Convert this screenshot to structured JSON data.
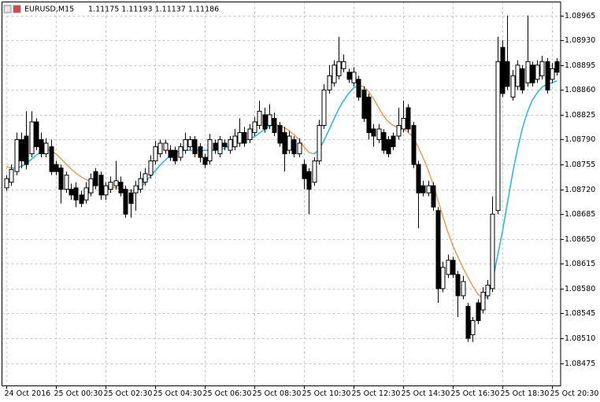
{
  "chart_data": {
    "type": "candlestick",
    "title": "EURUSD,M15",
    "quote": "1.11175 1.11193 1.11137 1.11186",
    "categories": [
      "24 Oct 2016",
      null,
      null,
      null,
      null,
      null,
      null,
      null,
      null,
      null,
      "25 Oct 00:30",
      null,
      null,
      null,
      null,
      null,
      null,
      null,
      null,
      null,
      "25 Oct 02:30",
      null,
      null,
      null,
      null,
      null,
      null,
      null,
      null,
      null,
      "25 Oct 04:30",
      null,
      null,
      null,
      null,
      null,
      null,
      null,
      null,
      null,
      "25 Oct 06:30",
      null,
      null,
      null,
      null,
      null,
      null,
      null,
      null,
      null,
      "25 Oct 08:30",
      null,
      null,
      null,
      null,
      null,
      null,
      null,
      null,
      null,
      "25 Oct 10:30",
      null,
      null,
      null,
      null,
      null,
      null,
      null,
      null,
      null,
      "25 Oct 12:30",
      null,
      null,
      null,
      null,
      null,
      null,
      null,
      null,
      null,
      "25 Oct 14:30",
      null,
      null,
      null,
      null,
      null,
      null,
      null,
      null,
      null,
      "25 Oct 16:30",
      null,
      null,
      null,
      null,
      null,
      null,
      null,
      null,
      null,
      "25 Oct 18:30",
      null,
      null,
      null,
      null,
      null,
      null,
      null,
      null,
      null,
      "25 Oct 20:30",
      null
    ],
    "open": [
      1.08722,
      1.0873,
      1.08745,
      1.0879,
      1.08795,
      1.0877,
      1.08815,
      1.0879,
      1.0877,
      1.0878,
      1.08755,
      1.0875,
      1.0872,
      1.0872,
      1.08722,
      1.08712,
      1.08705,
      1.08715,
      1.08745,
      1.0874,
      1.08712,
      1.0872,
      1.08725,
      1.0873,
      1.0872,
      1.08715,
      1.08715,
      1.0872,
      1.0873,
      1.0874,
      1.0876,
      1.0877,
      1.08775,
      1.08775,
      1.08775,
      1.08765,
      1.08775,
      1.0878,
      1.0879,
      1.0878,
      1.08765,
      1.0876,
      1.08785,
      1.0877,
      1.08785,
      1.08775,
      1.0878,
      1.08785,
      1.088,
      1.0879,
      1.088,
      1.0881,
      1.08825,
      1.0881,
      1.0882,
      1.0881,
      1.088,
      1.08775,
      1.0879,
      1.0877,
      1.08755,
      1.08745,
      1.0873,
      1.0876,
      1.0881,
      1.0886,
      1.0887,
      1.0888,
      1.0889,
      1.08885,
      1.0887,
      1.08875,
      1.0886,
      1.0885,
      1.08805,
      1.0879,
      1.088,
      1.0879,
      1.08795,
      1.08795,
      1.08805,
      1.08835,
      1.0881,
      1.08755,
      1.08725,
      1.08715,
      1.08725,
      1.0869,
      1.0858,
      1.086,
      1.0862,
      1.086,
      1.0857,
      1.08555,
      1.08515,
      1.0856,
      1.0855,
      1.0857,
      1.0858,
      1.0869,
      1.0892,
      1.089,
      1.0885,
      1.08865,
      1.0889,
      1.0887,
      1.08895,
      1.08875,
      1.0888,
      1.089,
      1.08875,
      1.089
    ],
    "high": [
      1.0874,
      1.08755,
      1.088,
      1.088,
      1.0883,
      1.0883,
      1.0882,
      1.088,
      1.08792,
      1.0879,
      1.0876,
      1.08755,
      1.08745,
      1.08728,
      1.0873,
      1.08718,
      1.0873,
      1.08742,
      1.0875,
      1.08745,
      1.0873,
      1.08738,
      1.0876,
      1.08738,
      1.08725,
      1.0872,
      1.08732,
      1.08745,
      1.0875,
      1.08768,
      1.08788,
      1.0879,
      1.0879,
      1.08782,
      1.0878,
      1.08785,
      1.088,
      1.08795,
      1.08795,
      1.08785,
      1.0877,
      1.08798,
      1.0879,
      1.08795,
      1.0879,
      1.08795,
      1.08805,
      1.0882,
      1.08808,
      1.08812,
      1.08822,
      1.08845,
      1.08835,
      1.0884,
      1.08828,
      1.08815,
      1.08808,
      1.08802,
      1.08795,
      1.08792,
      1.08762,
      1.0875,
      1.08765,
      1.08818,
      1.08868,
      1.08895,
      1.08902,
      1.08935,
      1.0891,
      1.0889,
      1.08892,
      1.0888,
      1.08865,
      1.08855,
      1.08812,
      1.08812,
      1.08805,
      1.08795,
      1.088,
      1.08835,
      1.08845,
      1.0884,
      1.08815,
      1.0876,
      1.08732,
      1.08732,
      1.0873,
      1.08695,
      1.08618,
      1.08628,
      1.08625,
      1.08605,
      1.08598,
      1.0856,
      1.0854,
      1.08565,
      1.08582,
      1.08592,
      1.0871,
      1.08935,
      1.0893,
      1.08965,
      1.08888,
      1.08902,
      1.08895,
      1.08965,
      1.089,
      1.08902,
      1.08908,
      1.08905,
      1.08898,
      1.08905
    ],
    "low": [
      1.08718,
      1.08725,
      1.0874,
      1.0875,
      1.08748,
      1.08765,
      1.08775,
      1.08765,
      1.08765,
      1.0874,
      1.0874,
      1.087,
      1.08715,
      1.08705,
      1.08695,
      1.08695,
      1.087,
      1.0871,
      1.0872,
      1.08705,
      1.08705,
      1.08715,
      1.0872,
      1.0871,
      1.0868,
      1.0868,
      1.0869,
      1.08715,
      1.08725,
      1.08735,
      1.08755,
      1.08765,
      1.0877,
      1.0876,
      1.08755,
      1.0876,
      1.0877,
      1.08775,
      1.08765,
      1.08758,
      1.0875,
      1.08755,
      1.0877,
      1.08765,
      1.08775,
      1.0877,
      1.08775,
      1.0878,
      1.0878,
      1.08785,
      1.08795,
      1.08805,
      1.088,
      1.08805,
      1.08795,
      1.0878,
      1.08745,
      1.0877,
      1.08765,
      1.08765,
      1.0872,
      1.08685,
      1.08725,
      1.08755,
      1.08805,
      1.08855,
      1.08865,
      1.08875,
      1.08885,
      1.0887,
      1.08865,
      1.08845,
      1.08815,
      1.0879,
      1.0878,
      1.08785,
      1.0877,
      1.08765,
      1.08775,
      1.0879,
      1.088,
      1.088,
      1.0875,
      1.08665,
      1.0871,
      1.0871,
      1.0869,
      1.0856,
      1.08575,
      1.08595,
      1.08595,
      1.0854,
      1.08565,
      1.08505,
      1.08505,
      1.0853,
      1.08545,
      1.08565,
      1.08575,
      1.08685,
      1.0885,
      1.0886,
      1.08845,
      1.0886,
      1.08855,
      1.08865,
      1.08865,
      1.0887,
      1.08875,
      1.08855,
      1.0887,
      1.0888
    ],
    "close": [
      1.08735,
      1.08748,
      1.0879,
      1.0876,
      1.08755,
      1.08815,
      1.0878,
      1.0877,
      1.08785,
      1.08745,
      1.08745,
      1.0872,
      1.0874,
      1.08712,
      1.08705,
      1.087,
      1.08722,
      1.08735,
      1.08725,
      1.08712,
      1.08725,
      1.0873,
      1.08732,
      1.08715,
      1.08685,
      1.087,
      1.08725,
      1.08735,
      1.08742,
      1.0876,
      1.0878,
      1.08785,
      1.08785,
      1.08765,
      1.0876,
      1.0878,
      1.0879,
      1.0879,
      1.0877,
      1.08765,
      1.08755,
      1.0879,
      1.08775,
      1.0879,
      1.0878,
      1.0879,
      1.08795,
      1.088,
      1.08785,
      1.08805,
      1.08815,
      1.0883,
      1.08805,
      1.08825,
      1.088,
      1.08785,
      1.0877,
      1.08795,
      1.0877,
      1.08785,
      1.08735,
      1.0872,
      1.0876,
      1.0881,
      1.0886,
      1.0888,
      1.08895,
      1.089,
      1.089,
      1.08875,
      1.08885,
      1.0885,
      1.0882,
      1.088,
      1.08795,
      1.08805,
      1.08775,
      1.0877,
      1.0878,
      1.0881,
      1.0882,
      1.08805,
      1.08755,
      1.08715,
      1.08715,
      1.08725,
      1.08695,
      1.0858,
      1.0861,
      1.0862,
      1.086,
      1.0857,
      1.0859,
      1.0851,
      1.08535,
      1.08535,
      1.08575,
      1.08585,
      1.08685,
      1.089,
      1.08855,
      1.08865,
      1.0888,
      1.08895,
      1.0886,
      1.089,
      1.0887,
      1.08895,
      1.089,
      1.0886,
      1.0889,
      1.08885
    ],
    "up_color": "#ffffff",
    "down_color": "#000000",
    "outline_color": "#000000",
    "ma": {
      "up_color": "#35b6e0",
      "down_color": "#e0a468",
      "values": [
        1.08752,
        1.0875,
        1.0875,
        1.08752,
        1.08756,
        1.08762,
        1.08768,
        1.08773,
        1.08776,
        1.08775,
        1.0877,
        1.08763,
        1.08756,
        1.08749,
        1.08743,
        1.08738,
        1.08734,
        1.08731,
        1.08728,
        1.08726,
        1.08724,
        1.08723,
        1.08722,
        1.08721,
        1.0872,
        1.08718,
        1.08718,
        1.08722,
        1.0873,
        1.08738,
        1.08746,
        1.08754,
        1.08761,
        1.08767,
        1.08771,
        1.08774,
        1.08775,
        1.08775,
        1.08775,
        1.08775,
        1.08775,
        1.08775,
        1.08775,
        1.08776,
        1.08778,
        1.08781,
        1.08784,
        1.08787,
        1.08789,
        1.08791,
        1.08794,
        1.08799,
        1.08804,
        1.08809,
        1.08811,
        1.0881,
        1.08807,
        1.08803,
        1.08797,
        1.0879,
        1.0878,
        1.08772,
        1.0877,
        1.08775,
        1.08788,
        1.08803,
        1.08818,
        1.08833,
        1.08845,
        1.08855,
        1.08863,
        1.08866,
        1.08865,
        1.08858,
        1.08848,
        1.08836,
        1.08824,
        1.08815,
        1.0881,
        1.08807,
        1.08805,
        1.08801,
        1.08793,
        1.0878,
        1.08765,
        1.08748,
        1.08728,
        1.08705,
        1.08682,
        1.0866,
        1.08641,
        1.08625,
        1.0861,
        1.08597,
        1.08584,
        1.08573,
        1.08566,
        1.08568,
        1.0859,
        1.08625,
        1.0866,
        1.087,
        1.0874,
        1.08775,
        1.08805,
        1.08828,
        1.08845,
        1.08856,
        1.08864,
        1.08868,
        1.0887,
        1.08873
      ]
    },
    "ylim": [
      1.08443,
      1.08984
    ],
    "yticks": [
      1.08965,
      {
        "value": 1.0893,
        "label": "1.08930"
      },
      1.08895,
      {
        "value": 1.0886,
        "label": "1.08860"
      },
      1.08825,
      {
        "value": 1.0879,
        "label": "1.08790"
      },
      1.08755,
      {
        "value": 1.0872,
        "label": "1.08720"
      },
      1.08685,
      {
        "value": 1.0865,
        "label": "1.08650"
      },
      1.08615,
      {
        "value": 1.0858,
        "label": "1.08580"
      },
      1.08545,
      {
        "value": 1.0851,
        "label": "1.08510"
      },
      1.08475
    ],
    "grid": true
  }
}
